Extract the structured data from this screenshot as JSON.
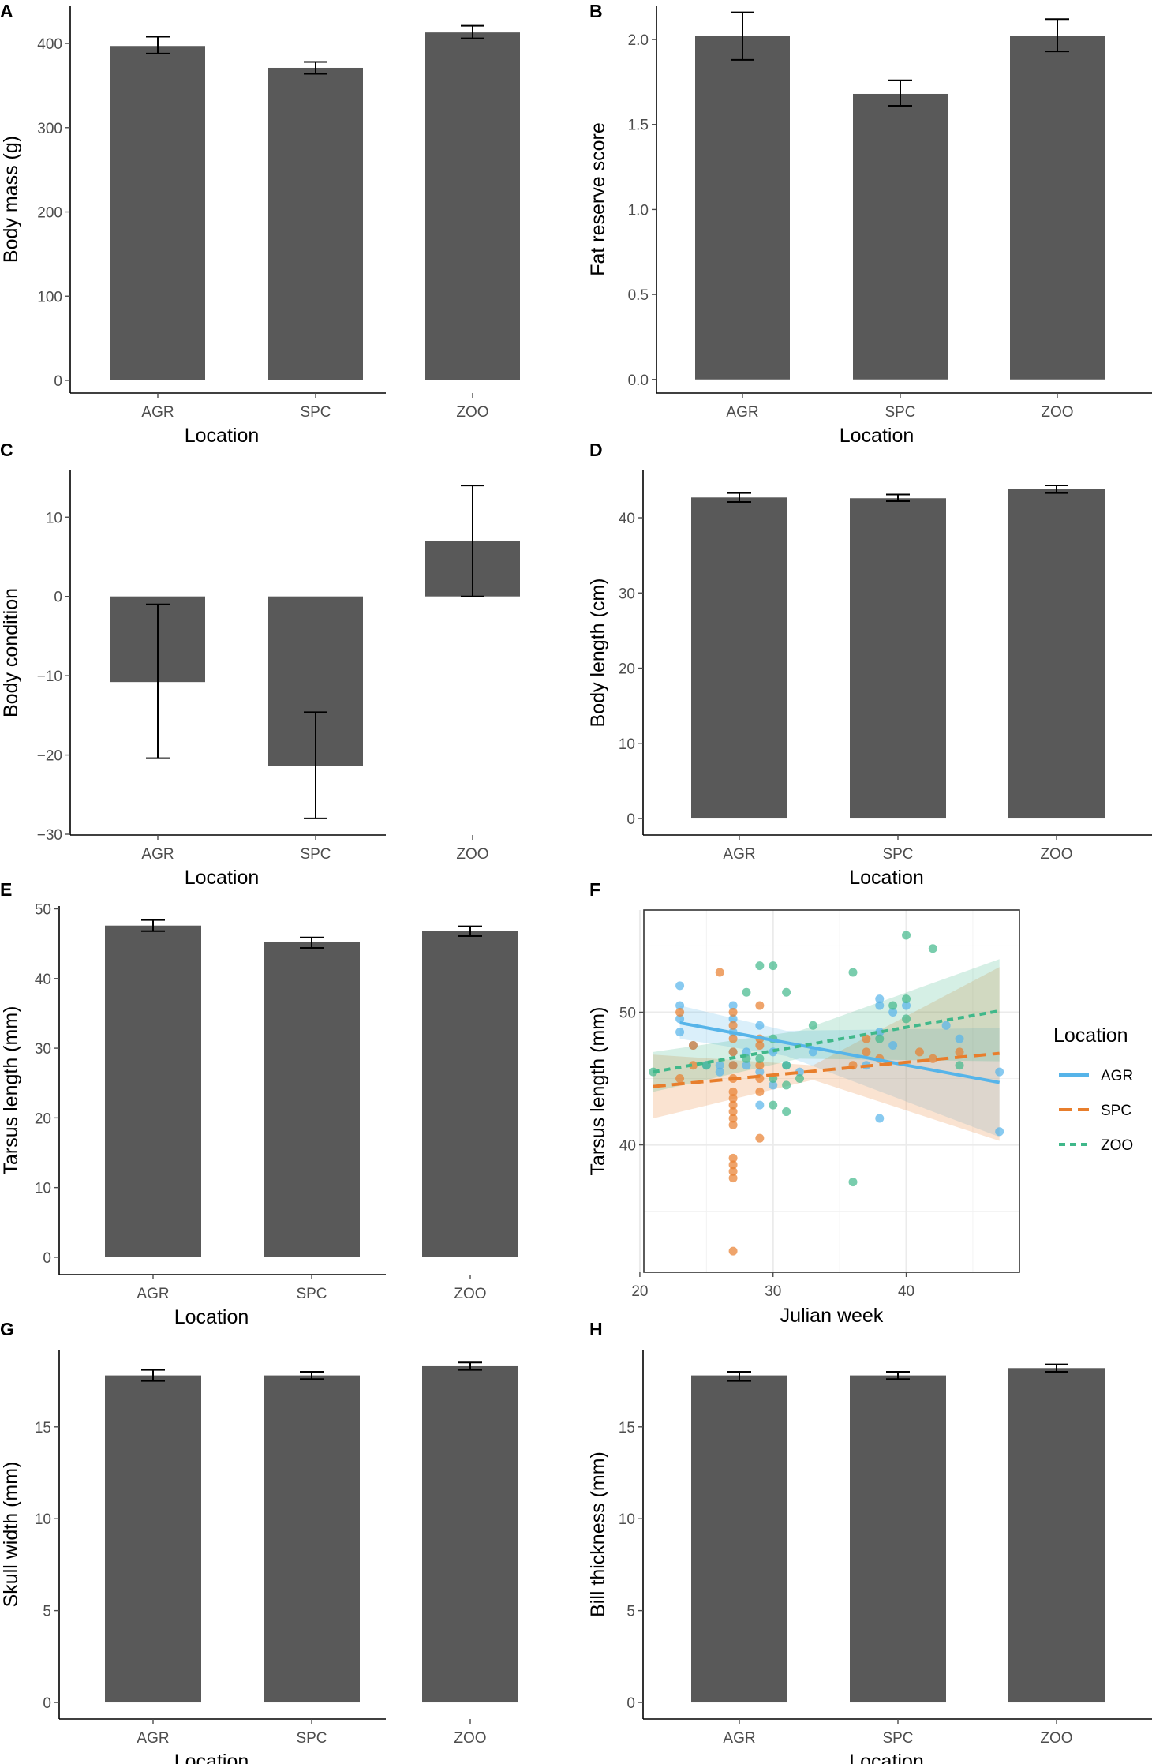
{
  "colors": {
    "bar": "#595959",
    "axis": "#000000",
    "tick_text": "#4d4d4d",
    "agr": "#56B4E9",
    "spc": "#E87E2C",
    "zoo": "#40B88A",
    "panel_border": "#333333",
    "grid": "#ebebeb"
  },
  "chart_data": [
    {
      "id": "A",
      "letter": "A",
      "type": "bar",
      "categories": [
        "AGR",
        "SPC",
        "ZOO"
      ],
      "values": [
        397,
        371,
        413
      ],
      "err_low": [
        388,
        364,
        406
      ],
      "err_high": [
        408,
        378,
        421
      ],
      "ylim": [
        -15,
        445
      ],
      "yticks": [
        0,
        100,
        200,
        300,
        400
      ],
      "ytick_labels": [
        "0",
        "100",
        "200",
        "300",
        "400"
      ],
      "xlabel": "Location",
      "ylabel": "Body mass (g)"
    },
    {
      "id": "B",
      "letter": "B",
      "type": "bar",
      "categories": [
        "AGR",
        "SPC",
        "ZOO"
      ],
      "values": [
        2.02,
        1.68,
        2.02
      ],
      "err_low": [
        1.88,
        1.61,
        1.93
      ],
      "err_high": [
        2.16,
        1.76,
        2.12
      ],
      "ylim": [
        -0.08,
        2.2
      ],
      "yticks": [
        0,
        0.5,
        1.0,
        1.5,
        2.0
      ],
      "ytick_labels": [
        "0.0",
        "0.5",
        "1.0",
        "1.5",
        "2.0"
      ],
      "xlabel": "Location",
      "ylabel": "Fat reserve score"
    },
    {
      "id": "C",
      "letter": "C",
      "type": "bar",
      "categories": [
        "AGR",
        "SPC",
        "ZOO"
      ],
      "values": [
        -10.8,
        -21.4,
        7.0
      ],
      "err_low": [
        -20.4,
        -28.0,
        0.0
      ],
      "err_high": [
        -1.0,
        -14.6,
        14.0
      ],
      "ylim": [
        -30.1,
        15.9
      ],
      "yticks": [
        -30,
        -20,
        -10,
        0,
        10
      ],
      "ytick_labels": [
        "−30",
        "−20",
        "−10",
        "0",
        "10"
      ],
      "xlabel": "Location",
      "ylabel": "Body condition"
    },
    {
      "id": "D",
      "letter": "D",
      "type": "bar",
      "categories": [
        "AGR",
        "SPC",
        "ZOO"
      ],
      "values": [
        42.7,
        42.6,
        43.8
      ],
      "err_low": [
        42.1,
        42.2,
        43.3
      ],
      "err_high": [
        43.3,
        43.1,
        44.3
      ],
      "ylim": [
        -2.2,
        46.3
      ],
      "yticks": [
        0,
        10,
        20,
        30,
        40
      ],
      "ytick_labels": [
        "0",
        "10",
        "20",
        "30",
        "40"
      ],
      "xlabel": "Location",
      "ylabel": "Body length (cm)"
    },
    {
      "id": "E",
      "letter": "E",
      "type": "bar",
      "categories": [
        "AGR",
        "SPC",
        "ZOO"
      ],
      "values": [
        47.6,
        45.2,
        46.8
      ],
      "err_low": [
        46.8,
        44.4,
        46.1
      ],
      "err_high": [
        48.4,
        45.9,
        47.5
      ],
      "ylim": [
        -2.5,
        50.4
      ],
      "yticks": [
        0,
        10,
        20,
        30,
        40,
        50
      ],
      "ytick_labels": [
        "0",
        "10",
        "20",
        "30",
        "40",
        "50"
      ],
      "xlabel": "Location",
      "ylabel": "Tarsus length (mm)"
    },
    {
      "id": "G",
      "letter": "G",
      "type": "bar",
      "categories": [
        "AGR",
        "SPC",
        "ZOO"
      ],
      "values": [
        17.8,
        17.8,
        18.3
      ],
      "err_low": [
        17.5,
        17.6,
        18.1
      ],
      "err_high": [
        18.1,
        18.0,
        18.5
      ],
      "ylim": [
        -0.9,
        19.2
      ],
      "yticks": [
        0,
        5,
        10,
        15
      ],
      "ytick_labels": [
        "0",
        "5",
        "10",
        "15"
      ],
      "xlabel": "Location",
      "ylabel": "Skull width (mm)"
    },
    {
      "id": "H",
      "letter": "H",
      "type": "bar",
      "categories": [
        "AGR",
        "SPC",
        "ZOO"
      ],
      "values": [
        17.8,
        17.8,
        18.2
      ],
      "err_low": [
        17.5,
        17.6,
        18.0
      ],
      "err_high": [
        18.0,
        18.0,
        18.4
      ],
      "ylim": [
        -0.9,
        19.2
      ],
      "yticks": [
        0,
        5,
        10,
        15
      ],
      "ytick_labels": [
        "0",
        "5",
        "10",
        "15"
      ],
      "xlabel": "Location",
      "ylabel": "Bill thickness (mm)"
    },
    {
      "id": "F",
      "letter": "F",
      "type": "scatter",
      "xlabel": "Julian week",
      "ylabel": "Tarsus length (mm)",
      "xlim": [
        20.3,
        48.5
      ],
      "ylim": [
        30.4,
        57.7
      ],
      "xticks": [
        20,
        30,
        40
      ],
      "xtick_labels": [
        "20",
        "30",
        "40"
      ],
      "yticks": [
        40,
        50
      ],
      "ytick_labels": [
        "40",
        "50"
      ],
      "x_minor": [
        25,
        35,
        45
      ],
      "y_minor": [
        35,
        45,
        55
      ],
      "legend": {
        "title": "Location",
        "entries": [
          "AGR",
          "SPC",
          "ZOO"
        ]
      },
      "series": [
        {
          "name": "AGR",
          "color": "#56B4E9",
          "points": [
            [
              23,
              52
            ],
            [
              23,
              50.5
            ],
            [
              23,
              49.5
            ],
            [
              23,
              48.5
            ],
            [
              24,
              47.5
            ],
            [
              25,
              46
            ],
            [
              26,
              45.5
            ],
            [
              26,
              46
            ],
            [
              27,
              46
            ],
            [
              27,
              47
            ],
            [
              27,
              48.5
            ],
            [
              27,
              49.5
            ],
            [
              27,
              50.5
            ],
            [
              28,
              47
            ],
            [
              28,
              46
            ],
            [
              29,
              43
            ],
            [
              29,
              45.5
            ],
            [
              29,
              49
            ],
            [
              30,
              47
            ],
            [
              30,
              44.5
            ],
            [
              31,
              46
            ],
            [
              32,
              45.5
            ],
            [
              33,
              47
            ],
            [
              37,
              46
            ],
            [
              38,
              51
            ],
            [
              38,
              50.5
            ],
            [
              38,
              48.5
            ],
            [
              38,
              42
            ],
            [
              39,
              50
            ],
            [
              39,
              47.5
            ],
            [
              40,
              50.5
            ],
            [
              43,
              49
            ],
            [
              44,
              48
            ],
            [
              47,
              45.5
            ],
            [
              47,
              41
            ]
          ],
          "line": [
            [
              23,
              49.2
            ],
            [
              47,
              44.7
            ]
          ],
          "band_low": [
            [
              23,
              48.0
            ],
            [
              31,
              46.7
            ],
            [
              47,
              40.6
            ]
          ],
          "band_high": [
            [
              23,
              50.5
            ],
            [
              31,
              48.6
            ],
            [
              47,
              48.8
            ]
          ],
          "dash": "solid"
        },
        {
          "name": "SPC",
          "color": "#E87E2C",
          "points": [
            [
              23,
              50
            ],
            [
              23,
              45
            ],
            [
              24,
              47.5
            ],
            [
              24,
              46
            ],
            [
              26,
              53
            ],
            [
              27,
              50
            ],
            [
              27,
              49
            ],
            [
              27,
              48
            ],
            [
              27,
              47
            ],
            [
              27,
              46
            ],
            [
              27,
              45
            ],
            [
              27,
              44
            ],
            [
              27,
              43.5
            ],
            [
              27,
              43
            ],
            [
              27,
              42.5
            ],
            [
              27,
              42
            ],
            [
              27,
              41.5
            ],
            [
              27,
              39
            ],
            [
              27,
              38.5
            ],
            [
              27,
              38
            ],
            [
              27,
              37.5
            ],
            [
              27,
              32
            ],
            [
              29,
              50.5
            ],
            [
              29,
              48
            ],
            [
              29,
              47.5
            ],
            [
              29,
              46
            ],
            [
              29,
              45
            ],
            [
              29,
              44
            ],
            [
              29,
              40.5
            ],
            [
              36,
              46
            ],
            [
              37,
              48
            ],
            [
              37,
              47
            ],
            [
              38,
              46.5
            ],
            [
              41,
              47
            ],
            [
              42,
              46.5
            ],
            [
              44,
              47
            ]
          ],
          "line": [
            [
              21,
              44.4
            ],
            [
              47,
              46.9
            ]
          ],
          "band_low": [
            [
              21,
              42.0
            ],
            [
              33,
              44.9
            ],
            [
              47,
              40.3
            ]
          ],
          "band_high": [
            [
              21,
              46.8
            ],
            [
              33,
              46.0
            ],
            [
              47,
              53.4
            ]
          ],
          "dash": "long"
        },
        {
          "name": "ZOO",
          "color": "#40B88A",
          "points": [
            [
              21,
              45.5
            ],
            [
              25,
              46
            ],
            [
              28,
              51.5
            ],
            [
              28,
              46.5
            ],
            [
              29,
              53.5
            ],
            [
              29,
              46.5
            ],
            [
              30,
              53.5
            ],
            [
              30,
              48
            ],
            [
              30,
              45
            ],
            [
              30,
              43
            ],
            [
              31,
              51.5
            ],
            [
              31,
              46
            ],
            [
              31,
              44.5
            ],
            [
              31,
              42.5
            ],
            [
              32,
              45
            ],
            [
              33,
              49
            ],
            [
              36,
              53
            ],
            [
              36,
              37.2
            ],
            [
              38,
              48
            ],
            [
              39,
              50.5
            ],
            [
              40,
              55.8
            ],
            [
              40,
              51
            ],
            [
              40,
              49.5
            ],
            [
              42,
              54.8
            ],
            [
              44,
              46
            ]
          ],
          "line": [
            [
              21,
              45.5
            ],
            [
              47,
              50.1
            ]
          ],
          "band_low": [
            [
              21,
              44.0
            ],
            [
              32,
              46.5
            ],
            [
              47,
              46.3
            ]
          ],
          "band_high": [
            [
              21,
              47.0
            ],
            [
              32,
              48.6
            ],
            [
              47,
              54.0
            ]
          ],
          "dash": "short"
        }
      ]
    }
  ]
}
